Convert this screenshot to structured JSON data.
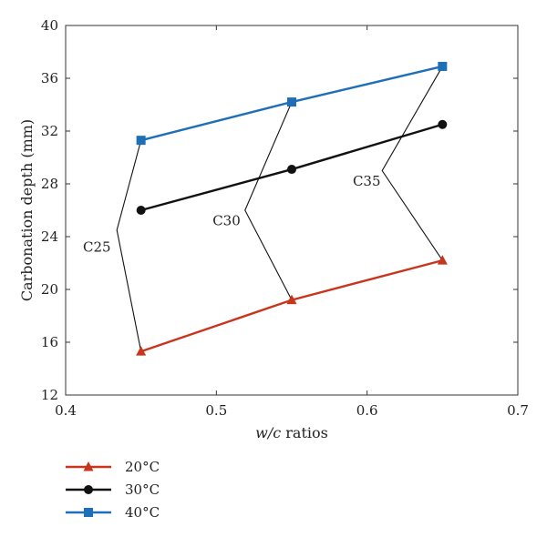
{
  "chart_data": {
    "type": "line",
    "xlabel_parts": [
      "w/c",
      " ratios"
    ],
    "ylabel": "Carbonation depth (mm)",
    "xlim": [
      0.4,
      0.7
    ],
    "ylim": [
      12,
      40
    ],
    "xticks": [
      "0.4",
      "0.5",
      "0.6",
      "0.7"
    ],
    "yticks": [
      "12",
      "16",
      "20",
      "24",
      "28",
      "32",
      "36",
      "40"
    ],
    "grid": false,
    "legend_position": "bottom-left",
    "x": [
      0.45,
      0.55,
      0.65
    ],
    "series": [
      {
        "name": "20°C",
        "values": [
          15.3,
          19.2,
          22.2
        ],
        "color": "#c8351c",
        "marker": "triangle"
      },
      {
        "name": "30°C",
        "values": [
          26.0,
          29.1,
          32.5
        ],
        "color": "#111111",
        "marker": "circle"
      },
      {
        "name": "40°C",
        "values": [
          31.3,
          34.2,
          36.9
        ],
        "color": "#1f6fb8",
        "marker": "square"
      }
    ],
    "annotations": [
      {
        "text": "C25",
        "x_index": 0,
        "vertex": [
          0.434,
          24.5
        ],
        "label_at": [
          0.43,
          23.2
        ]
      },
      {
        "text": "C30",
        "x_index": 1,
        "vertex": [
          0.519,
          26.0
        ],
        "label_at": [
          0.516,
          25.2
        ]
      },
      {
        "text": "C35",
        "x_index": 2,
        "vertex": [
          0.61,
          29.0
        ],
        "label_at": [
          0.609,
          28.2
        ]
      }
    ]
  }
}
